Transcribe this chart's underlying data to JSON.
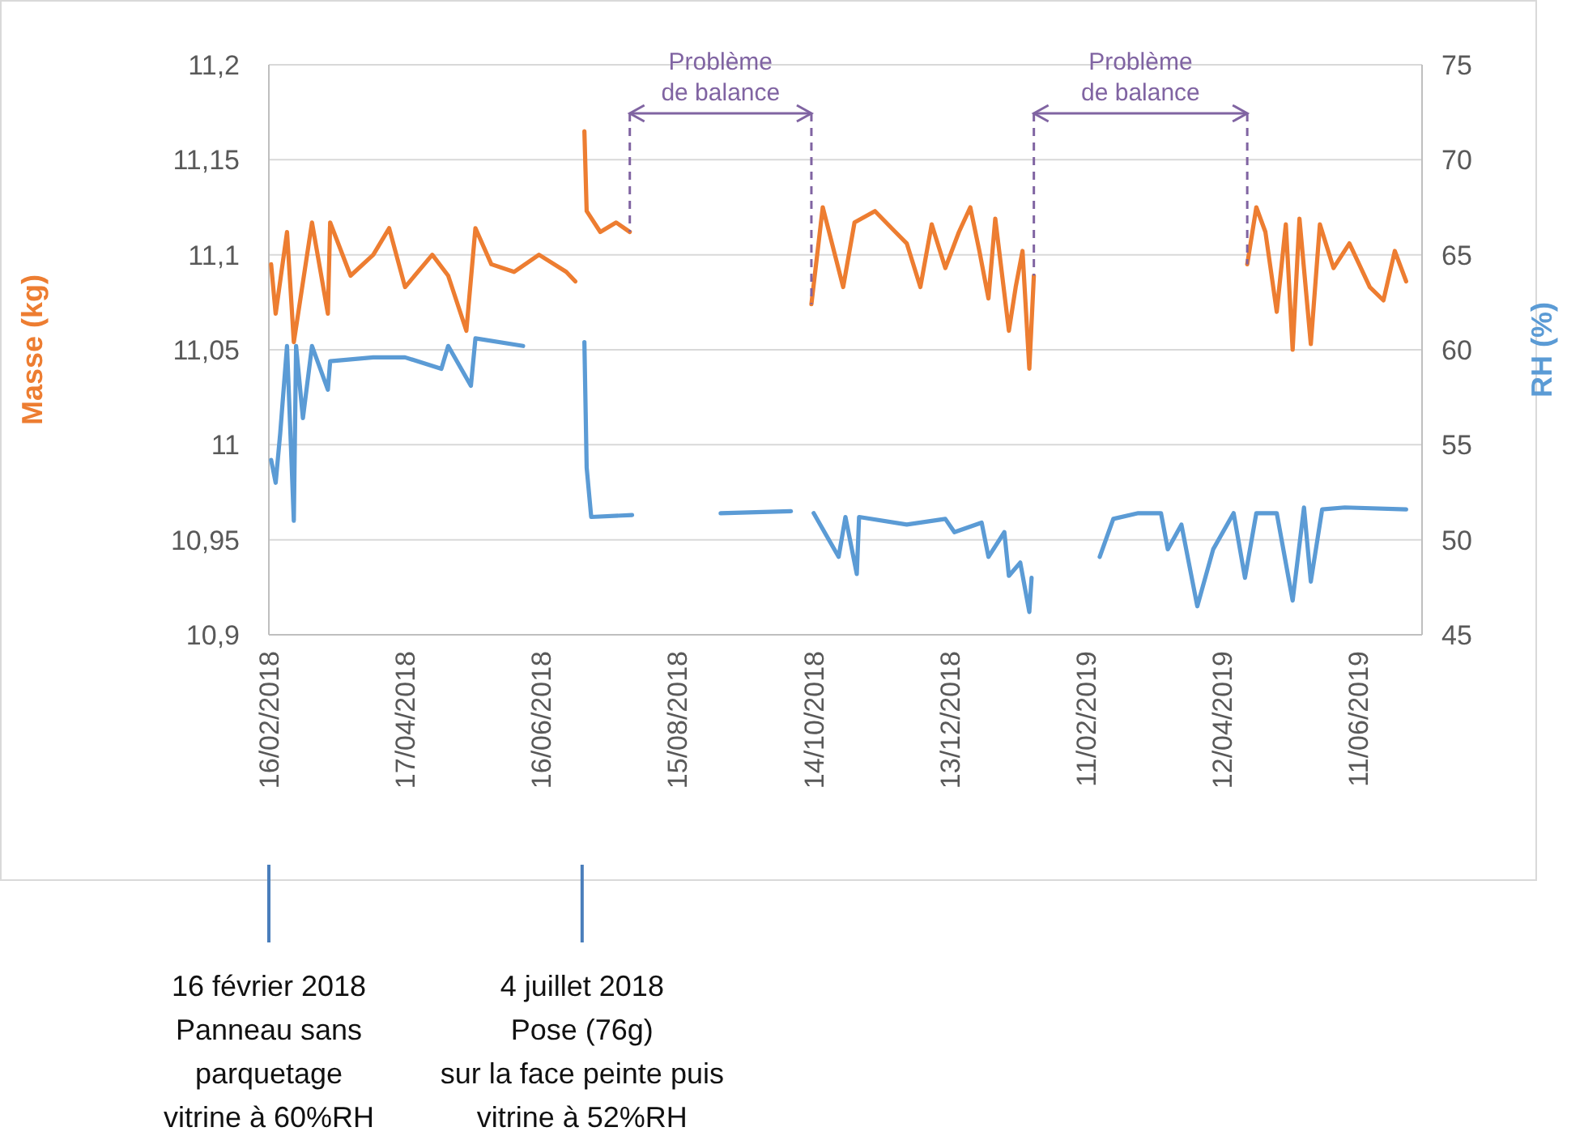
{
  "chart_data": {
    "type": "line",
    "ylabel": "Masse (kg)",
    "y2label": "RH (%)",
    "xlim": [
      "2018-02-16",
      "2019-07-09"
    ],
    "xticks": [
      {
        "value": "2018-02-16",
        "label": "16/02/2018"
      },
      {
        "value": "2018-04-17",
        "label": "17/04/2018"
      },
      {
        "value": "2018-06-16",
        "label": "16/06/2018"
      },
      {
        "value": "2018-08-15",
        "label": "15/08/2018"
      },
      {
        "value": "2018-10-14",
        "label": "14/10/2018"
      },
      {
        "value": "2018-12-13",
        "label": "13/12/2018"
      },
      {
        "value": "2019-02-11",
        "label": "11/02/2019"
      },
      {
        "value": "2019-04-12",
        "label": "12/04/2019"
      },
      {
        "value": "2019-06-11",
        "label": "11/06/2019"
      }
    ],
    "ylim": [
      10.9,
      11.2
    ],
    "yticks": [
      {
        "value": 10.9,
        "label": "10,9"
      },
      {
        "value": 10.95,
        "label": "10,95"
      },
      {
        "value": 11,
        "label": "11"
      },
      {
        "value": 11.05,
        "label": "11,05"
      },
      {
        "value": 11.1,
        "label": "11,1"
      },
      {
        "value": 11.15,
        "label": "11,15"
      },
      {
        "value": 11.2,
        "label": "11,2"
      }
    ],
    "y2lim": [
      45,
      75
    ],
    "y2ticks": [
      45,
      50,
      55,
      60,
      65,
      70,
      75
    ],
    "grid": "y",
    "series": [
      {
        "color": "#ed7d31",
        "x": [
          "2018-02-17",
          "2018-02-19",
          "2018-02-24",
          "2018-02-27",
          "2018-03-07",
          "2018-03-14",
          "2018-03-15",
          "2018-03-24",
          "2018-04-03",
          "2018-04-10",
          "2018-04-17",
          "2018-04-29",
          "2018-05-06",
          "2018-05-14",
          "2018-05-18",
          "2018-05-25",
          "2018-06-04",
          "2018-06-15",
          "2018-06-27",
          "2018-07-01",
          "2018-07-03",
          "2018-07-05",
          "2018-07-06",
          "2018-07-12",
          "2018-07-19",
          "2018-07-25",
          "2018-09-01",
          "2018-10-13",
          "2018-10-18",
          "2018-10-27",
          "2018-11-01",
          "2018-11-10",
          "2018-11-19",
          "2018-11-24",
          "2018-11-30",
          "2018-12-05",
          "2018-12-11",
          "2018-12-17",
          "2018-12-22",
          "2018-12-26",
          "2018-12-30",
          "2019-01-02",
          "2019-01-08",
          "2019-01-11",
          "2019-01-14",
          "2019-01-17",
          "2019-01-19",
          "2019-03-01",
          "2019-04-23",
          "2019-04-27",
          "2019-05-01",
          "2019-05-06",
          "2019-05-10",
          "2019-05-13",
          "2019-05-16",
          "2019-05-21",
          "2019-05-25",
          "2019-05-31",
          "2019-06-07",
          "2019-06-16",
          "2019-06-22",
          "2019-06-27",
          "2019-07-02"
        ],
        "values": [
          11.095,
          11.069,
          11.112,
          11.054,
          11.117,
          11.069,
          11.117,
          11.089,
          11.1,
          11.114,
          11.083,
          11.1,
          11.089,
          11.06,
          11.114,
          11.095,
          11.091,
          11.1,
          11.091,
          11.086,
          null,
          11.165,
          11.123,
          11.112,
          11.117,
          11.112,
          null,
          11.074,
          11.125,
          11.083,
          11.117,
          11.123,
          11.112,
          11.106,
          11.083,
          11.116,
          11.093,
          11.112,
          11.125,
          11.102,
          11.077,
          11.119,
          11.06,
          11.083,
          11.102,
          11.04,
          11.089,
          null,
          11.095,
          11.125,
          11.112,
          11.07,
          11.116,
          11.05,
          11.119,
          11.053,
          11.116,
          11.093,
          11.106,
          11.083,
          11.076,
          11.102,
          11.086
        ]
      },
      {
        "color": "#5b9bd5",
        "axis": "y2",
        "x": [
          "2018-02-17",
          "2018-02-19",
          "2018-02-21",
          "2018-02-24",
          "2018-02-27",
          "2018-02-28",
          "2018-03-03",
          "2018-03-07",
          "2018-03-14",
          "2018-03-15",
          "2018-04-03",
          "2018-04-17",
          "2018-05-03",
          "2018-05-06",
          "2018-05-16",
          "2018-05-18",
          "2018-06-08",
          "2018-06-25",
          "2018-07-05",
          "2018-07-06",
          "2018-07-08",
          "2018-07-26",
          "2018-08-10",
          "2018-09-03",
          "2018-10-04",
          "2018-10-08",
          "2018-10-14",
          "2018-10-25",
          "2018-10-28",
          "2018-11-02",
          "2018-11-03",
          "2018-11-24",
          "2018-12-11",
          "2018-12-15",
          "2018-12-27",
          "2018-12-30",
          "2019-01-06",
          "2019-01-08",
          "2019-01-13",
          "2019-01-17",
          "2019-01-18",
          "2019-01-30",
          "2019-02-17",
          "2019-02-23",
          "2019-03-06",
          "2019-03-16",
          "2019-03-19",
          "2019-03-25",
          "2019-04-01",
          "2019-04-08",
          "2019-04-17",
          "2019-04-22",
          "2019-04-27",
          "2019-05-06",
          "2019-05-13",
          "2019-05-18",
          "2019-05-21",
          "2019-05-26",
          "2019-06-05",
          "2019-07-02"
        ],
        "values": [
          54.2,
          53.0,
          55.6,
          60.2,
          51.0,
          60.2,
          56.4,
          60.2,
          57.9,
          59.4,
          59.6,
          59.6,
          59.0,
          60.2,
          58.1,
          60.6,
          60.2,
          null,
          60.4,
          53.8,
          51.2,
          51.3,
          null,
          51.4,
          51.5,
          null,
          51.4,
          49.1,
          51.2,
          48.2,
          51.2,
          50.8,
          51.1,
          50.4,
          50.9,
          49.1,
          50.4,
          48.1,
          48.8,
          46.2,
          48.0,
          null,
          49.1,
          51.1,
          51.4,
          51.4,
          49.5,
          50.8,
          46.5,
          49.5,
          51.4,
          48.0,
          51.4,
          51.4,
          46.8,
          51.7,
          47.8,
          51.6,
          51.7,
          51.6
        ]
      }
    ],
    "annotations": [
      "Problème de balance",
      "Problème de balance",
      {
        "text": "16 février 2018\nPanneau sans\nparquetage\nvitrine à 60%RH",
        "x": "2018-02-16"
      },
      {
        "text": "4 juillet 2018\nPose (76g)\nsur la face peinte puis\nvitrine à 52%RH",
        "x": "2018-07-04"
      }
    ]
  }
}
